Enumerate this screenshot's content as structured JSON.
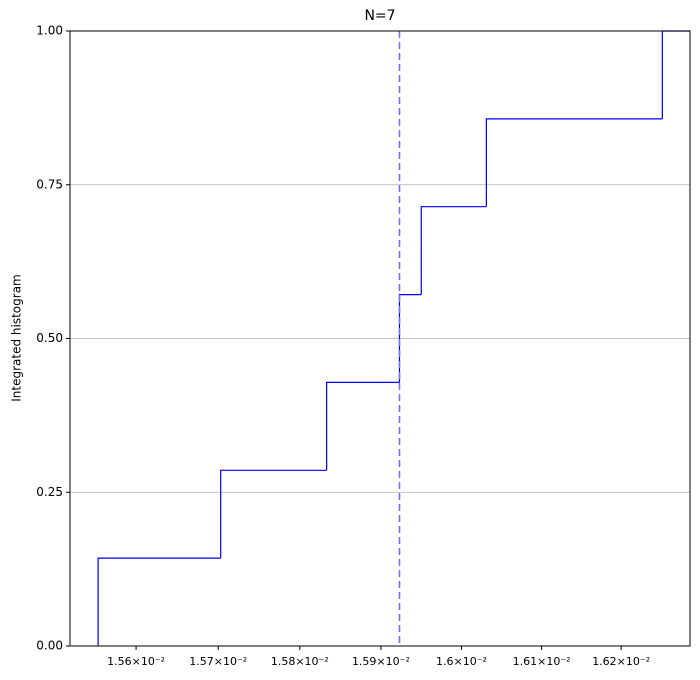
{
  "chart_data": {
    "type": "step",
    "title": "N=7",
    "ylabel": "Integrated histogram",
    "x": [
      0.015554,
      0.015703,
      0.015833,
      0.015923,
      0.01595,
      0.016031,
      0.016252
    ],
    "values": [
      0.1429,
      0.2857,
      0.4286,
      0.5714,
      0.7143,
      0.8571,
      1.0
    ],
    "color": "#0000ff",
    "vline": 0.015923,
    "vline_color": "#7070f0",
    "xscale": "log",
    "xlim": [
      0.01552,
      0.016287
    ],
    "ylim": [
      0,
      1
    ],
    "xticks": [
      {
        "value": 0.0156,
        "label": "1.56×10⁻²"
      },
      {
        "value": 0.0157,
        "label": "1.57×10⁻²"
      },
      {
        "value": 0.0158,
        "label": "1.58×10⁻²"
      },
      {
        "value": 0.0159,
        "label": "1.59×10⁻²"
      },
      {
        "value": 0.016,
        "label": "1.6×10⁻²"
      },
      {
        "value": 0.0161,
        "label": "1.61×10⁻²"
      },
      {
        "value": 0.0162,
        "label": "1.62×10⁻²"
      }
    ],
    "yticks": [
      {
        "value": 0,
        "label": "0.00"
      },
      {
        "value": 0.25,
        "label": "0.25"
      },
      {
        "value": 0.5,
        "label": "0.50"
      },
      {
        "value": 0.75,
        "label": "0.75"
      },
      {
        "value": 1,
        "label": "1.00"
      }
    ],
    "grid": "y"
  }
}
